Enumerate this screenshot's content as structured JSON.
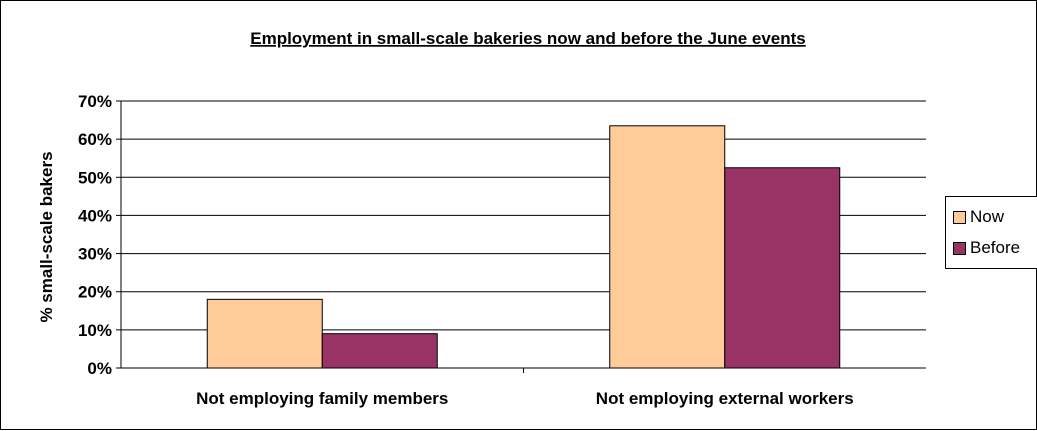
{
  "chart_data": {
    "type": "bar",
    "title": "Employment in small-scale bakeries now and before the June events",
    "xlabel": "",
    "ylabel": "% small-scale bakers",
    "categories": [
      "Not employing family members",
      "Not employing external workers"
    ],
    "series": [
      {
        "name": "Now",
        "values": [
          18,
          63.5
        ],
        "color": "#FFCC99"
      },
      {
        "name": "Before",
        "values": [
          9,
          52.5
        ],
        "color": "#993366"
      }
    ],
    "ylim": [
      0,
      70
    ],
    "yticks": [
      "0%",
      "10%",
      "20%",
      "30%",
      "40%",
      "50%",
      "60%",
      "70%"
    ],
    "grid": true,
    "legend_position": "right"
  },
  "legend": {
    "items": [
      {
        "label": "Now",
        "color": "#FFCC99"
      },
      {
        "label": "Before",
        "color": "#993366"
      }
    ]
  }
}
